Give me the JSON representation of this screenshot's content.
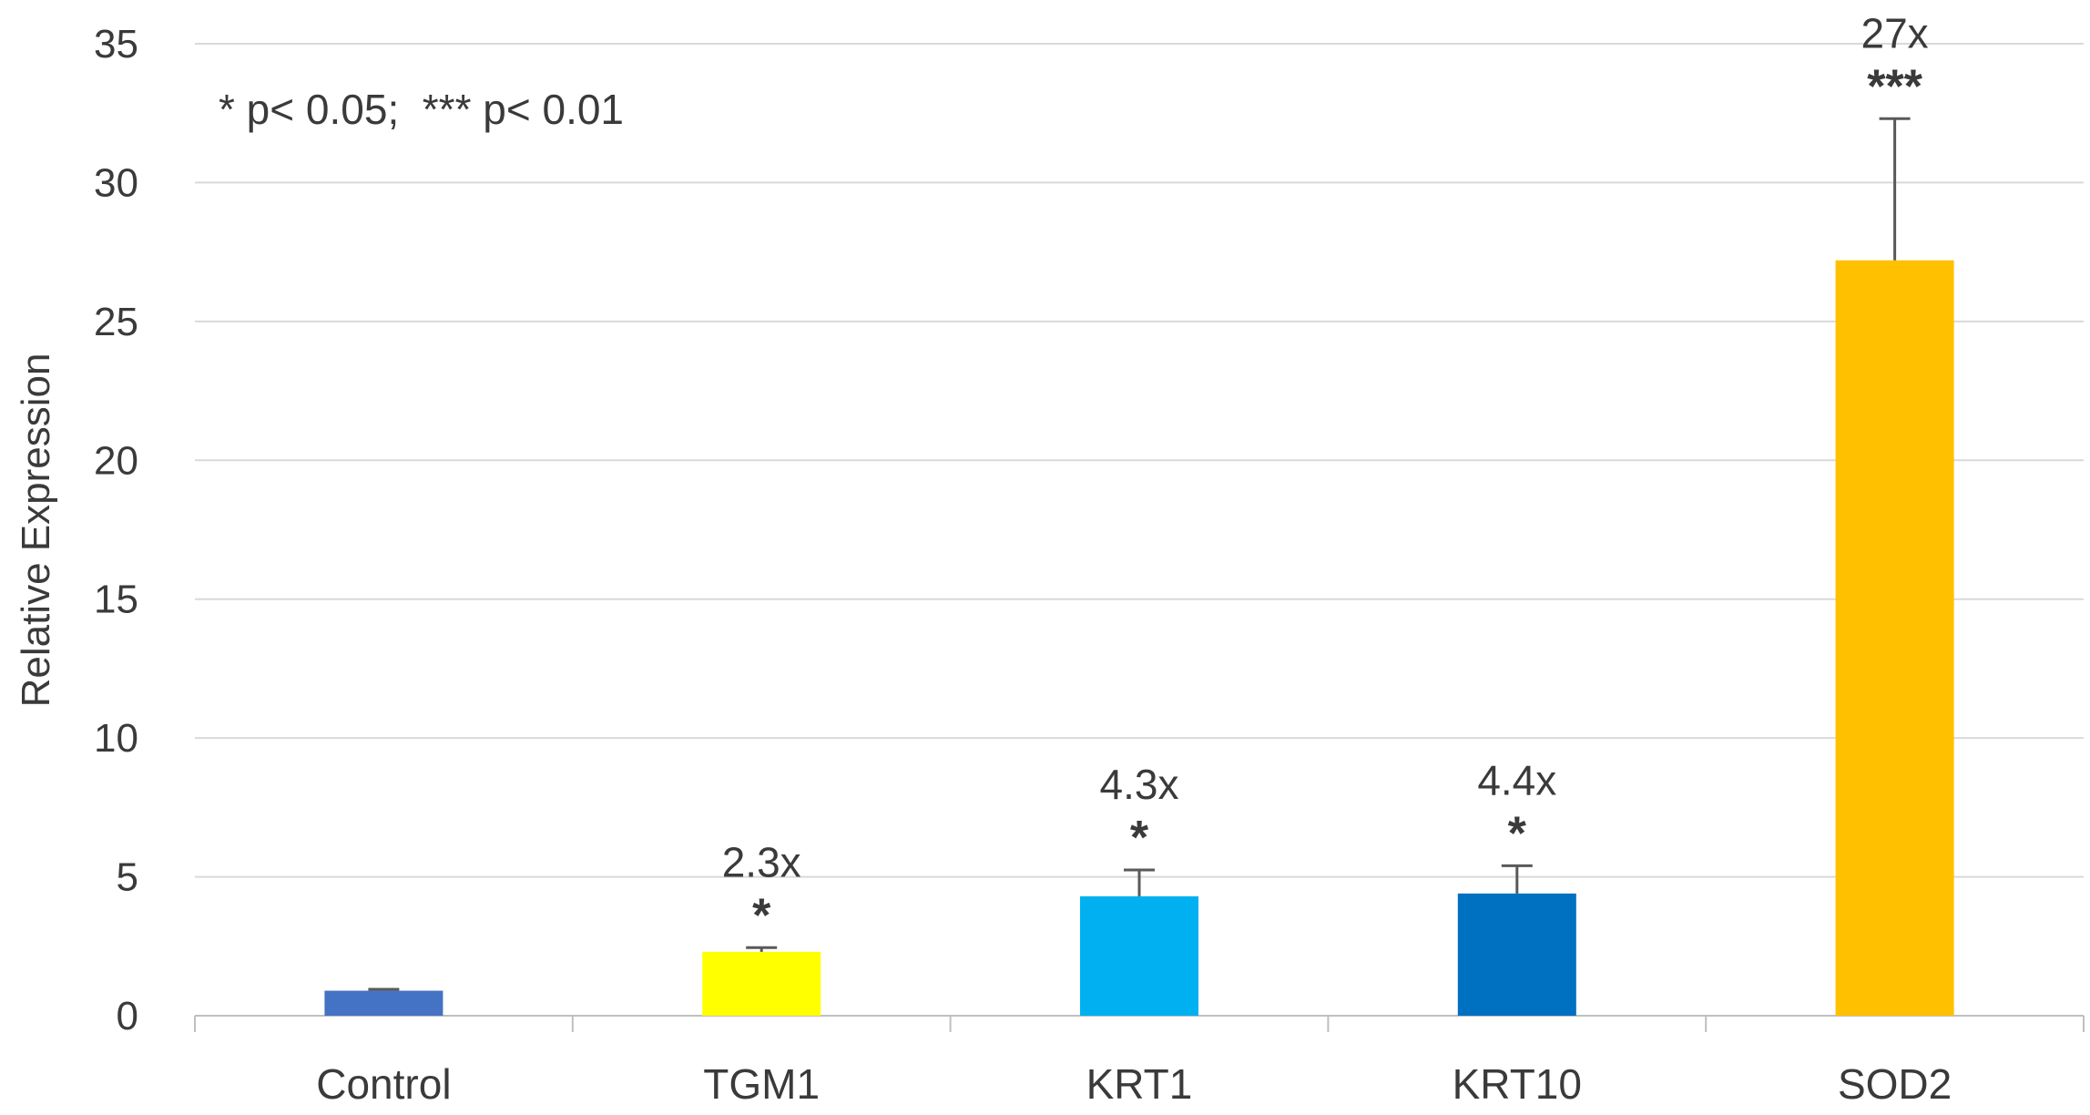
{
  "chart_data": {
    "type": "bar",
    "title": "",
    "xlabel": "",
    "ylabel": "Relative Expression",
    "ylim": [
      0,
      35
    ],
    "yticks": [
      0,
      5,
      10,
      15,
      20,
      25,
      30,
      35
    ],
    "grid": true,
    "categories": [
      "Control",
      "TGM1",
      "KRT1",
      "KRT10",
      "SOD2"
    ],
    "values": [
      0.9,
      2.3,
      4.3,
      4.4,
      27.2
    ],
    "error_upper": [
      0.05,
      0.15,
      0.95,
      1.0,
      5.1
    ],
    "bar_colors": [
      "#4472C4",
      "#FFFF00",
      "#00B0F0",
      "#0070C0",
      "#FFC000"
    ],
    "data_labels": [
      "",
      "2.3x",
      "4.3x",
      "4.4x",
      "27x"
    ],
    "significance": [
      "",
      "*",
      "*",
      "*",
      "***"
    ],
    "annotation": "* p< 0.05;  *** p< 0.01"
  }
}
